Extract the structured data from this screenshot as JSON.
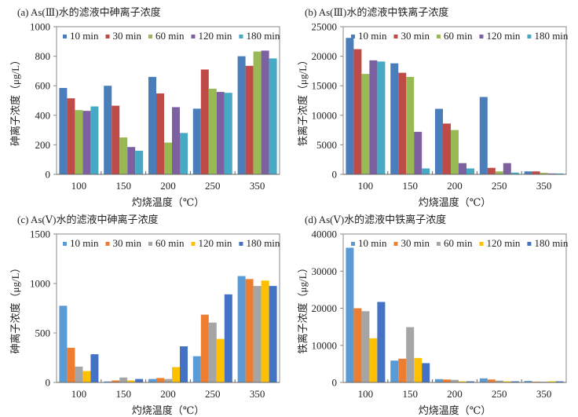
{
  "chart_data": [
    {
      "type": "bar",
      "title": "(a) As(Ⅲ)水的滤液中砷离子浓度",
      "xlabel": "灼烧温度（℃）",
      "ylabel": "砷离子浓度（μg/L）",
      "categories": [
        "100",
        "150",
        "200",
        "250",
        "350"
      ],
      "ylim": [
        0,
        1000
      ],
      "yticks": [
        0,
        200,
        400,
        600,
        800,
        1000
      ],
      "grid": false,
      "legend": "top",
      "series": [
        {
          "name": "10 min",
          "color": "#4a7ebb",
          "values": [
            585,
            600,
            660,
            445,
            800
          ]
        },
        {
          "name": "30 min",
          "color": "#be4b48",
          "values": [
            515,
            465,
            548,
            710,
            735
          ]
        },
        {
          "name": "60 min",
          "color": "#98b954",
          "values": [
            435,
            250,
            215,
            580,
            832
          ]
        },
        {
          "name": "120 min",
          "color": "#7d60a0",
          "values": [
            430,
            185,
            455,
            558,
            838
          ]
        },
        {
          "name": "180 min",
          "color": "#46aac5",
          "values": [
            460,
            160,
            280,
            552,
            785
          ]
        }
      ]
    },
    {
      "type": "bar",
      "title": "(b) As(Ⅲ)水的滤液中铁离子浓度",
      "xlabel": "灼烧温度（℃）",
      "ylabel": "铁离子浓度（μg/L）",
      "categories": [
        "100",
        "150",
        "200",
        "250",
        "350"
      ],
      "ylim": [
        0,
        25000
      ],
      "yticks": [
        0,
        5000,
        10000,
        15000,
        20000,
        25000
      ],
      "grid": false,
      "legend": "top",
      "series": [
        {
          "name": "10 min",
          "color": "#4a7ebb",
          "values": [
            23100,
            18800,
            11100,
            13100,
            500
          ]
        },
        {
          "name": "30 min",
          "color": "#be4b48",
          "values": [
            21200,
            17200,
            8600,
            1100,
            500
          ]
        },
        {
          "name": "60 min",
          "color": "#98b954",
          "values": [
            17000,
            16500,
            7500,
            500,
            250
          ]
        },
        {
          "name": "120 min",
          "color": "#7d60a0",
          "values": [
            19300,
            7200,
            1900,
            1900,
            150
          ]
        },
        {
          "name": "180 min",
          "color": "#46aac5",
          "values": [
            19100,
            1000,
            1000,
            300,
            150
          ]
        }
      ]
    },
    {
      "type": "bar",
      "title": "(c) As(Ⅴ)水的滤液中砷离子浓度",
      "xlabel": "灼烧温度（℃）",
      "ylabel": "砷离子浓度（μg/L）",
      "categories": [
        "100",
        "150",
        "200",
        "250",
        "350"
      ],
      "ylim": [
        0,
        1500
      ],
      "yticks": [
        0,
        500,
        1000,
        1500
      ],
      "grid": false,
      "legend": "top",
      "series": [
        {
          "name": "10 min",
          "color": "#5b9bd5",
          "values": [
            775,
            10,
            35,
            265,
            1075
          ]
        },
        {
          "name": "30 min",
          "color": "#ed7d31",
          "values": [
            350,
            20,
            45,
            685,
            1045
          ]
        },
        {
          "name": "60 min",
          "color": "#a5a5a5",
          "values": [
            160,
            50,
            35,
            605,
            975
          ]
        },
        {
          "name": "120 min",
          "color": "#ffc000",
          "values": [
            115,
            20,
            155,
            440,
            1030
          ]
        },
        {
          "name": "180 min",
          "color": "#4472c4",
          "values": [
            285,
            35,
            365,
            890,
            975
          ]
        }
      ]
    },
    {
      "type": "bar",
      "title": "(d) As(Ⅴ)水的滤液中铁离子浓度",
      "xlabel": "灼烧温度（℃）",
      "ylabel": "铁离子浓度（μg/L）",
      "categories": [
        "100",
        "150",
        "200",
        "250",
        "350"
      ],
      "ylim": [
        0,
        40000
      ],
      "yticks": [
        0,
        10000,
        20000,
        30000,
        40000
      ],
      "grid": false,
      "legend": "top",
      "series": [
        {
          "name": "10 min",
          "color": "#5b9bd5",
          "values": [
            36300,
            5900,
            900,
            1100,
            400
          ]
        },
        {
          "name": "30 min",
          "color": "#ed7d31",
          "values": [
            20000,
            6400,
            800,
            800,
            200
          ]
        },
        {
          "name": "60 min",
          "color": "#a5a5a5",
          "values": [
            19200,
            14900,
            700,
            500,
            200
          ]
        },
        {
          "name": "120 min",
          "color": "#ffc000",
          "values": [
            11900,
            6600,
            300,
            300,
            300
          ]
        },
        {
          "name": "180 min",
          "color": "#4472c4",
          "values": [
            21700,
            5200,
            300,
            300,
            300
          ]
        }
      ]
    }
  ]
}
